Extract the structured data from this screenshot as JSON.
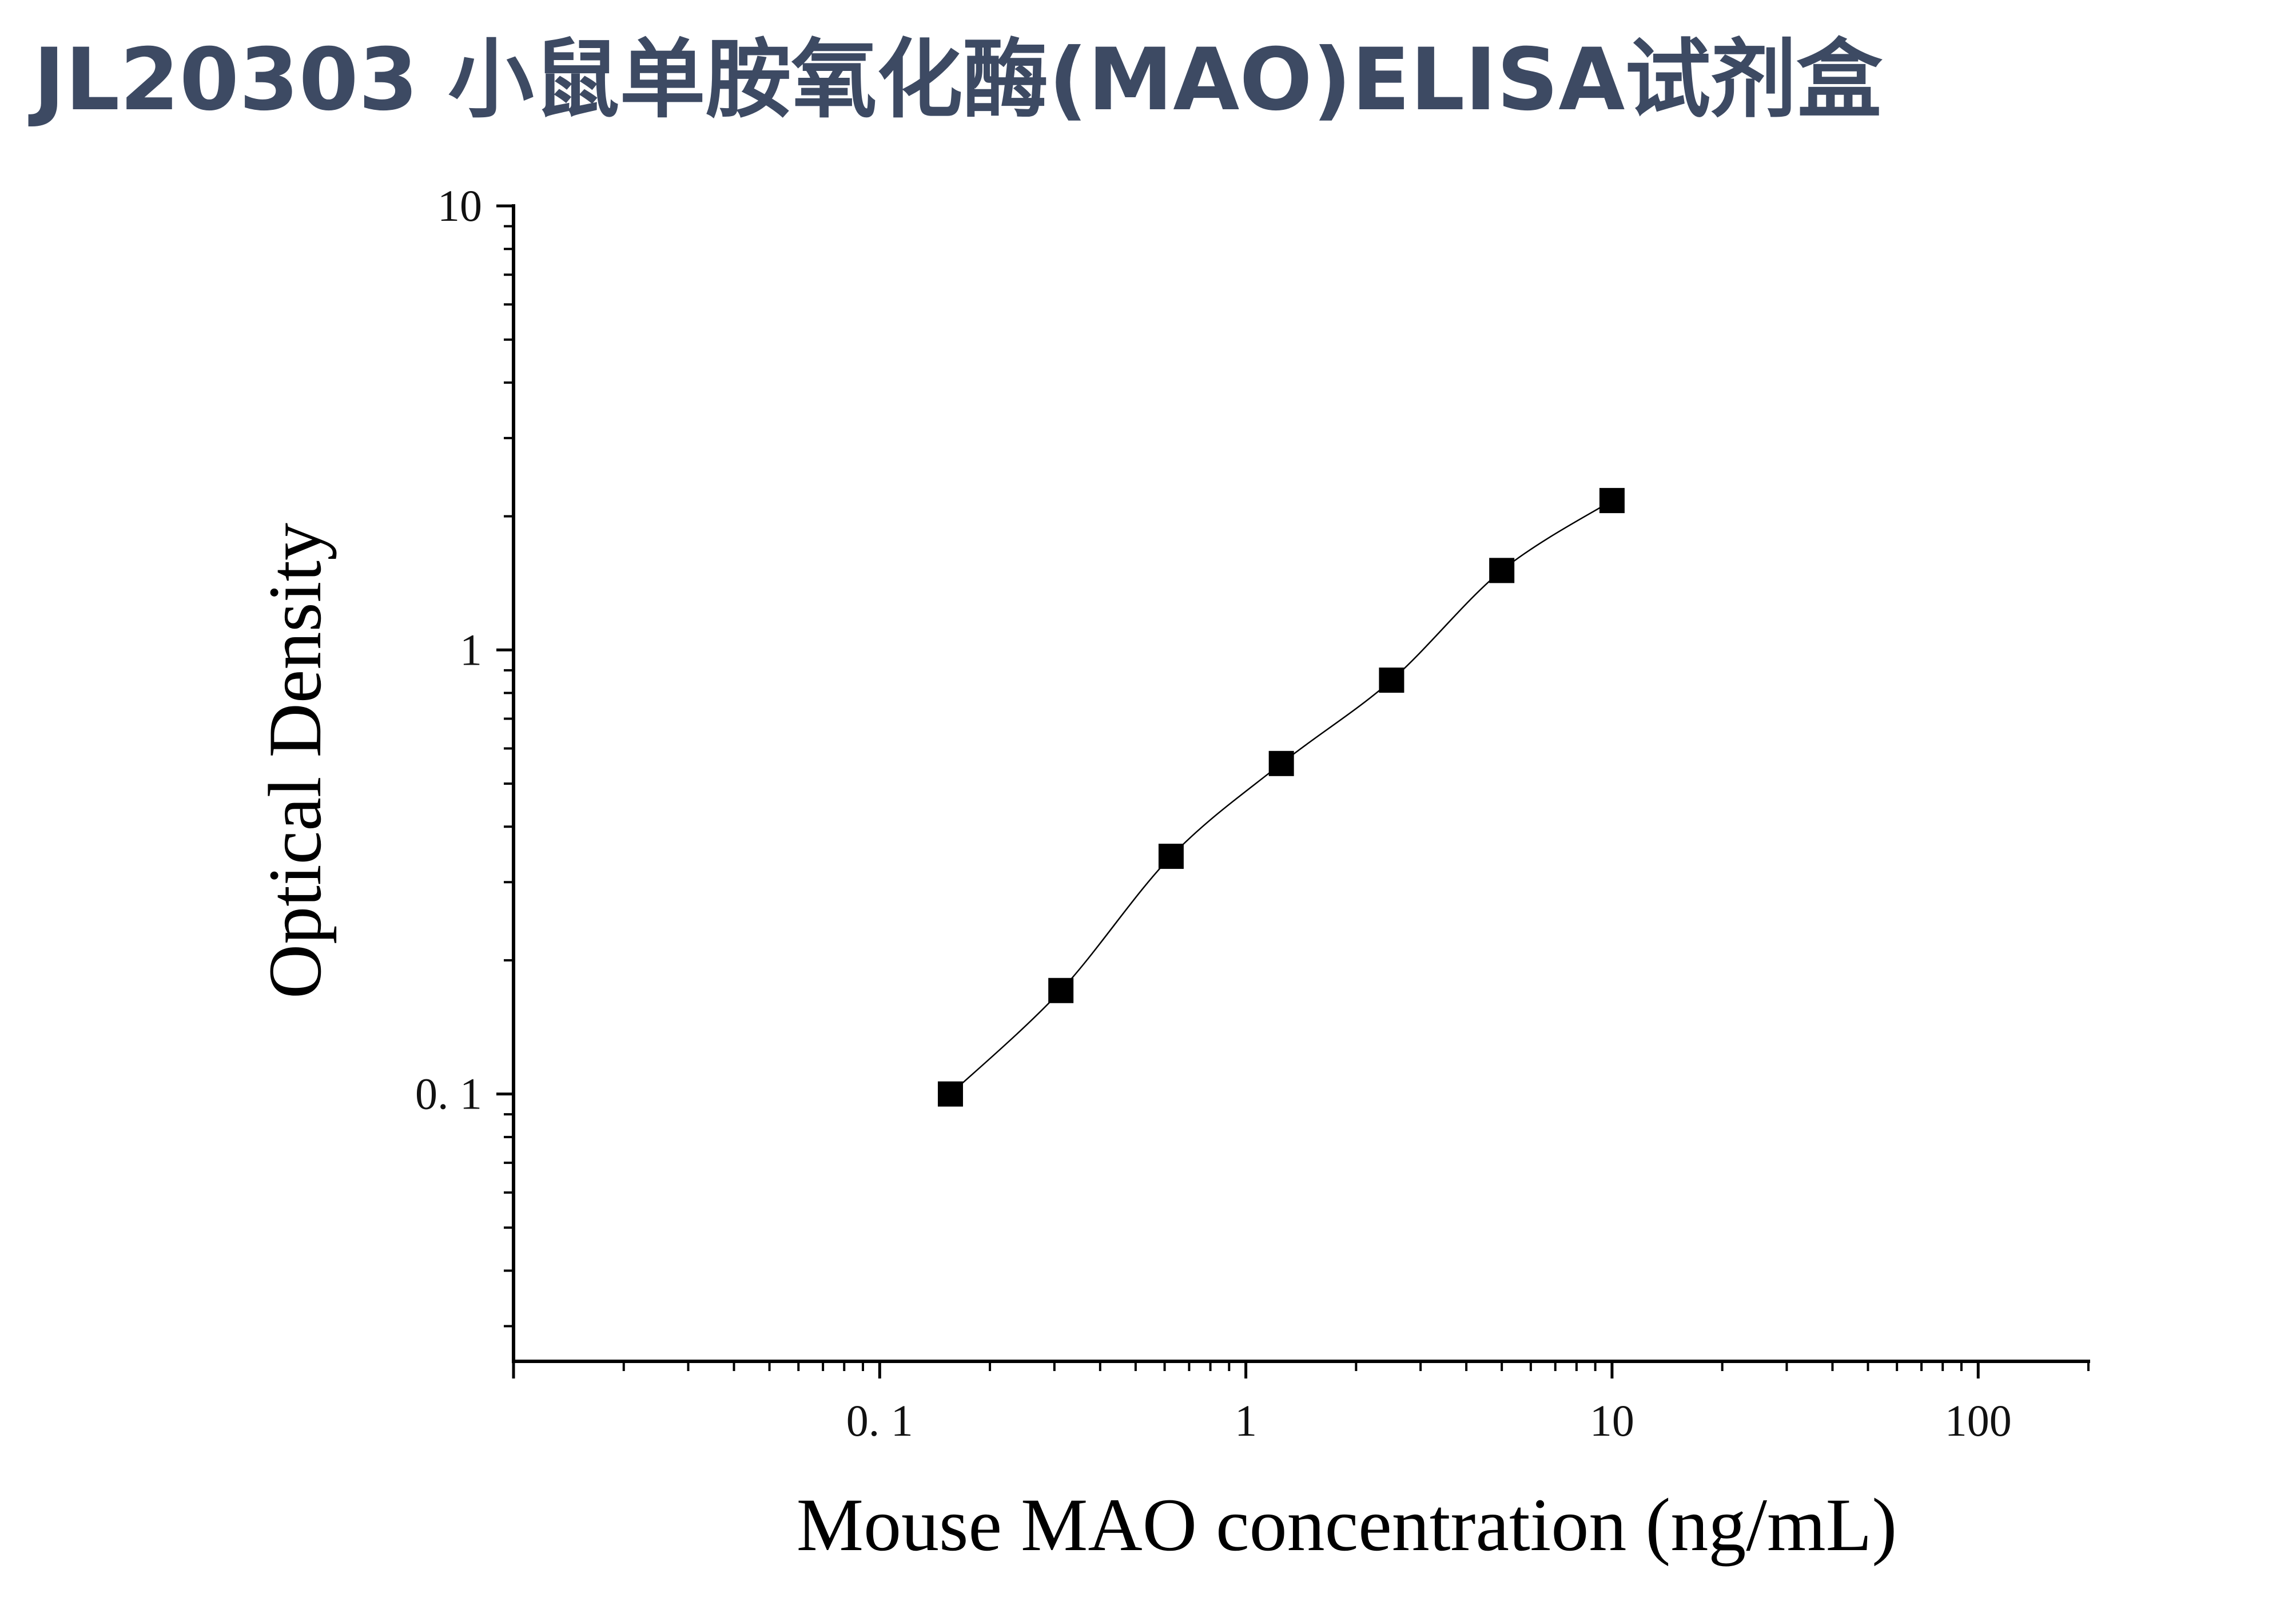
{
  "page": {
    "title": "JL20303 小鼠单胺氧化酶(MAO)ELISA试剂盒",
    "title_color": "#3d4a63"
  },
  "chart_data": {
    "type": "scatter",
    "title": "",
    "xlabel": "Mouse MAO concentration (ng/mL)",
    "ylabel": "Optical Density",
    "x_scale": "log",
    "y_scale": "log",
    "xlim": [
      0.01,
      200
    ],
    "ylim": [
      0.025,
      10
    ],
    "x_ticks": [
      {
        "value": 0.1,
        "label": "0. 1"
      },
      {
        "value": 1,
        "label": "1"
      },
      {
        "value": 10,
        "label": "10"
      },
      {
        "value": 100,
        "label": "100"
      }
    ],
    "y_ticks": [
      {
        "value": 0.1,
        "label": "0. 1"
      },
      {
        "value": 1,
        "label": "1"
      },
      {
        "value": 10,
        "label": "10"
      }
    ],
    "grid": false,
    "legend": "none",
    "series": [
      {
        "x": [
          0.156,
          0.3125,
          0.625,
          1.25,
          2.5,
          5,
          10
        ],
        "y": [
          0.1,
          0.171,
          0.343,
          0.555,
          0.855,
          1.51,
          2.17
        ],
        "marker": "square",
        "color": "#000000",
        "fit_line": true
      }
    ]
  }
}
